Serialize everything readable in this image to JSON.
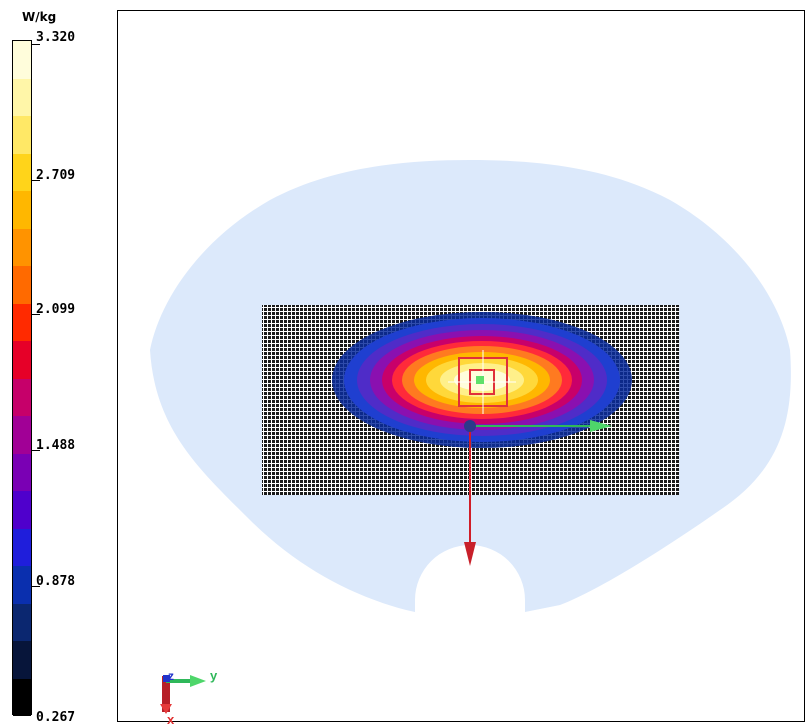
{
  "colorbar": {
    "unit": "W/kg",
    "ticks": [
      "3.320",
      "2.709",
      "2.099",
      "1.488",
      "0.878",
      "0.267"
    ],
    "colors": [
      "#fffddb",
      "#fff6a8",
      "#ffe866",
      "#ffd41a",
      "#ffb700",
      "#ff9300",
      "#ff6a00",
      "#ff2a00",
      "#e60028",
      "#c6006a",
      "#a10096",
      "#7a00b4",
      "#4f00cc",
      "#1f1edb",
      "#0a2fae",
      "#0b2770",
      "#07153a",
      "#000000"
    ]
  },
  "scan": {
    "phantom_color": "#dce9fb",
    "grid_color": "#1a1a1a"
  },
  "axes": {
    "z_label": "z",
    "y_label": "y",
    "x_label": "x"
  }
}
